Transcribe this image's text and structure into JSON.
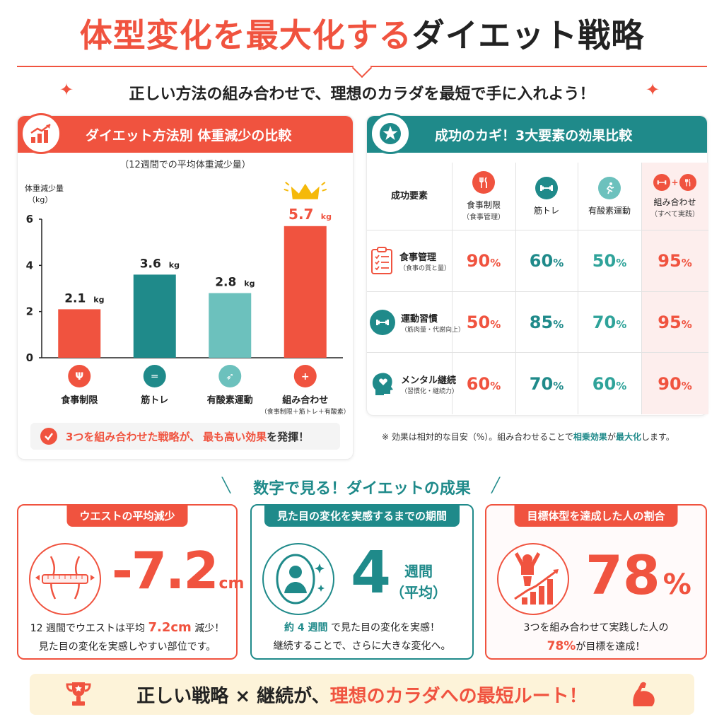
{
  "header": {
    "title_red": "体型変化を最大化する",
    "title_dark": "ダイエット戦略",
    "subtitle": "正しい方法の組み合わせで、理想のカラダを最短で手に入れよう！"
  },
  "weight_chart": {
    "heading": "ダイエット方法別 体重減少の比較",
    "note": "（12週間での平均体重減少量）",
    "ylabel_line1": "体重減少量",
    "ylabel_line2": "（kg）",
    "callout_pre": "3つを組み合わせた戦略が、",
    "callout_hl": "最も高い効果",
    "callout_post": "を発揮！"
  },
  "chart_data": {
    "type": "bar",
    "categories": [
      "食事制限",
      "筋トレ",
      "有酸素運動",
      "組み合わせ"
    ],
    "category_notes": [
      "",
      "",
      "",
      "（食事制限＋筋トレ＋有酸素）"
    ],
    "values": [
      2.1,
      3.6,
      2.8,
      5.7
    ],
    "value_labels": [
      "2.1",
      "3.6",
      "2.8",
      "5.7"
    ],
    "value_unit": "kg",
    "ylim": [
      0,
      6
    ],
    "yticks": [
      0,
      2,
      4,
      6
    ],
    "colors": [
      "#f0533f",
      "#1f8a8a",
      "#6cc1bd",
      "#f0533f"
    ],
    "label_colors": [
      "#222222",
      "#222222",
      "#222222",
      "#f0533f"
    ],
    "highlight_index": 3,
    "highlight_icon": "crown-icon"
  },
  "factor_table": {
    "heading": "成功のカギ！3大要素の効果比較",
    "corner_label": "成功要素",
    "columns": [
      {
        "label": "食事制限",
        "sub": "（食事管理）",
        "icon": "fork-knife-icon",
        "color": "#f0533f"
      },
      {
        "label": "筋トレ",
        "sub": "",
        "icon": "dumbbell-icon",
        "color": "#1f8a8a"
      },
      {
        "label": "有酸素運動",
        "sub": "",
        "icon": "runner-icon",
        "color": "#6cc1bd"
      },
      {
        "label": "組み合わせ",
        "sub": "（すべて実践）",
        "icon": "combo-icon",
        "color": "#f0533f"
      }
    ],
    "rows": [
      {
        "label": "食事管理",
        "sub": "（食事の質と量）",
        "icon": "checklist-icon",
        "values": [
          "90",
          "60",
          "50",
          "95"
        ]
      },
      {
        "label": "運動習慣",
        "sub": "（筋肉量・代謝向上）",
        "icon": "dumbbell-icon",
        "values": [
          "50",
          "85",
          "70",
          "95"
        ]
      },
      {
        "label": "メンタル継続",
        "sub": "（習慣化・継続力）",
        "icon": "head-heart-icon",
        "values": [
          "60",
          "70",
          "60",
          "90"
        ]
      }
    ],
    "percent_sign": "%",
    "value_colors": [
      "#f0533f",
      "#1f8a8a",
      "#2fa39a",
      "#f0533f"
    ],
    "footnote_pre": "※ 効果は相対的な目安（%）。組み合わせることで",
    "footnote_hl1": "相乗効果",
    "footnote_mid": "が",
    "footnote_hl2": "最大化",
    "footnote_post": "します。"
  },
  "results": {
    "section_title": "数字で見る！ダイエットの成果",
    "waist": {
      "tag": "ウエストの平均減少",
      "value": "-7.2",
      "unit": "cm",
      "desc1_pre": "12 週間でウエストは平均 ",
      "desc1_hl": "7.2cm",
      "desc1_post": " 減少！",
      "desc2": "見た目の変化を実感しやすい部位です。"
    },
    "period": {
      "tag": "見た目の変化を実感するまでの期間",
      "value": "4",
      "unit1": "週間",
      "unit2": "（平均）",
      "desc1_hl": "約 4 週間",
      "desc1_post": " で見た目の変化を実感！",
      "desc2": "継続することで、さらに大きな変化へ。"
    },
    "goal": {
      "tag": "目標体型を達成した人の割合",
      "value": "78",
      "unit": "%",
      "desc1": "3つを組み合わせて実践した人の",
      "desc2_hl": "78%",
      "desc2_post": "が目標を達成！"
    }
  },
  "banner": {
    "pre": "正しい戦略 × 継続が、",
    "hl": "理想のカラダへの最短ルート！"
  }
}
